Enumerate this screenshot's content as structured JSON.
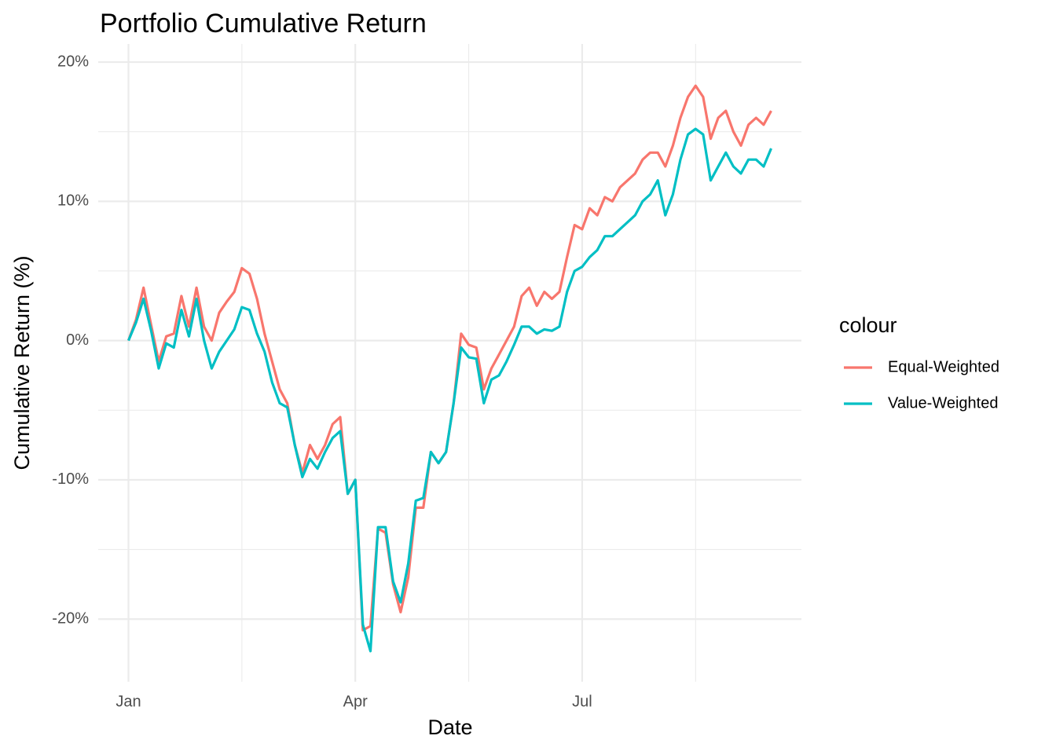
{
  "chart_data": {
    "type": "line",
    "title": "Portfolio Cumulative Return",
    "x_label": "Date",
    "y_label": "Cumulative Return (%)",
    "legend_title": "colour",
    "legend_position": "right",
    "grid": true,
    "categories": [
      "Jan",
      null,
      null,
      null,
      null,
      null,
      null,
      null,
      null,
      null,
      null,
      null,
      null,
      null,
      null,
      null,
      null,
      null,
      null,
      null,
      null,
      null,
      null,
      null,
      null,
      null,
      null,
      null,
      null,
      null,
      "Apr",
      null,
      null,
      null,
      null,
      null,
      null,
      null,
      null,
      null,
      null,
      null,
      null,
      null,
      null,
      null,
      null,
      null,
      null,
      null,
      null,
      null,
      null,
      null,
      null,
      null,
      null,
      null,
      null,
      null,
      "Jul",
      null,
      null,
      null,
      null,
      null,
      null,
      null,
      null,
      null,
      null,
      null,
      null,
      null,
      null,
      null,
      null,
      null,
      null,
      null,
      null,
      null,
      null,
      null,
      null,
      null
    ],
    "ylim": [
      -24.5,
      21.3
    ],
    "yticks": [
      {
        "value": -20,
        "label": "-20%"
      },
      {
        "value": -10,
        "label": "-10%"
      },
      {
        "value": 0,
        "label": "0%"
      },
      {
        "value": 10,
        "label": "10%"
      },
      {
        "value": 20,
        "label": "20%"
      }
    ],
    "series": [
      {
        "name": "Equal-Weighted",
        "color": "#F8766D",
        "values": [
          0,
          1.5,
          3.8,
          1.1,
          -1.5,
          0.3,
          0.5,
          3.2,
          1.0,
          3.8,
          1.0,
          0.0,
          2.0,
          2.8,
          3.5,
          5.2,
          4.8,
          3.0,
          0.5,
          -1.5,
          -3.5,
          -4.5,
          -7.5,
          -9.5,
          -7.5,
          -8.5,
          -7.5,
          -6.0,
          -5.5,
          -11.0,
          -10.0,
          -20.8,
          -20.5,
          -13.5,
          -13.8,
          -17.5,
          -19.5,
          -17.0,
          -12.0,
          -12.0,
          -8.0,
          -8.8,
          -8.0,
          -4.5,
          0.5,
          -0.3,
          -0.5,
          -3.5,
          -2.0,
          -1.0,
          0.0,
          1.0,
          3.2,
          3.8,
          2.5,
          3.5,
          3.0,
          3.5,
          6.0,
          8.3,
          8.0,
          9.5,
          9.0,
          10.3,
          10.0,
          11.0,
          11.5,
          12.0,
          13.0,
          13.5,
          13.5,
          12.5,
          14.0,
          16.0,
          17.5,
          18.3,
          17.5,
          14.5,
          16.0,
          16.5,
          15.0,
          14.0,
          15.5,
          16.0,
          15.5,
          16.5
        ]
      },
      {
        "name": "Value-Weighted",
        "color": "#00BFC4",
        "values": [
          0,
          1.3,
          3.0,
          0.7,
          -2.0,
          -0.2,
          -0.5,
          2.2,
          0.3,
          3.0,
          0.0,
          -2.0,
          -0.8,
          0.0,
          0.8,
          2.4,
          2.2,
          0.5,
          -0.8,
          -3.0,
          -4.5,
          -4.8,
          -7.5,
          -9.8,
          -8.5,
          -9.2,
          -8.0,
          -7.0,
          -6.5,
          -11.0,
          -10.0,
          -20.4,
          -22.3,
          -13.4,
          -13.4,
          -17.3,
          -18.8,
          -16.0,
          -11.5,
          -11.3,
          -8.0,
          -8.8,
          -8.0,
          -4.5,
          -0.5,
          -1.2,
          -1.3,
          -4.5,
          -2.8,
          -2.5,
          -1.5,
          -0.3,
          1.0,
          1.0,
          0.5,
          0.8,
          0.7,
          1.0,
          3.5,
          5.0,
          5.3,
          6.0,
          6.5,
          7.5,
          7.5,
          8.0,
          8.5,
          9.0,
          10.0,
          10.5,
          11.5,
          9.0,
          10.5,
          13.0,
          14.8,
          15.2,
          14.8,
          11.5,
          12.5,
          13.5,
          12.5,
          12.0,
          13.0,
          13.0,
          12.5,
          13.8
        ]
      }
    ]
  }
}
